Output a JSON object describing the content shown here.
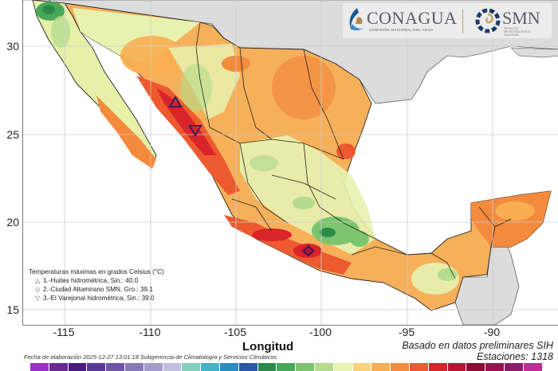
{
  "header": {
    "logo_conagua": "CONAGUA",
    "logo_conagua_sub": "COMISIÓN NACIONAL DEL AGUA",
    "logo_smn": "SMN",
    "logo_smn_sub": "SERVICIO METEOROLÓGICO NACIONAL"
  },
  "axes": {
    "xlabel": "Longitud",
    "xticks": [
      "-115",
      "-110",
      "-105",
      "-100",
      "-95",
      "-90"
    ],
    "yticks": [
      "30",
      "25",
      "20",
      "15"
    ]
  },
  "legend": {
    "title": "Temperaturas máximas en grados Celsius (°C)",
    "items": [
      {
        "symbol": "△",
        "text": "1.-Huites hidrométrica, Sin.: 40.0"
      },
      {
        "symbol": "◇",
        "text": "2.-Ciudad Altamirano SMN, Gro.: 39.1"
      },
      {
        "symbol": "▽",
        "text": "3.-El Varejonal hidrométrica, Sin.: 39.0"
      }
    ]
  },
  "footer": {
    "fecha": "Fecha de elaboración 2025-12-27 13:01:18 Subgerencia de Climatología y Servicios Climáticos",
    "basado": "Basado en datos preliminares SIH",
    "estaciones": "Estaciones:  1318"
  },
  "colorbar": [
    "#9b30c8",
    "#6a2a92",
    "#4a1a80",
    "#5a3796",
    "#6e55aa",
    "#8a78ba",
    "#a49ccc",
    "#c0bfe0",
    "#86d0c0",
    "#40b4c8",
    "#2a8cc0",
    "#2a58a8",
    "#2a8a4a",
    "#48a85a",
    "#7cc46e",
    "#b4dc8c",
    "#e8f2b0",
    "#fad27a",
    "#f8ae50",
    "#f48a3c",
    "#ee5a30",
    "#d8242a",
    "#b81432",
    "#8c0c34",
    "#a01050",
    "#8c1c6a",
    "#c02c98"
  ],
  "chart_data": {
    "type": "heatmap",
    "title": "Temperaturas máximas en grados Celsius (°C)",
    "xlabel": "Longitud",
    "ylabel": "",
    "xlim": [
      -117.5,
      -86.5
    ],
    "ylim": [
      14.2,
      32.7
    ],
    "xticks": [
      -115,
      -110,
      -105,
      -100,
      -95,
      -90
    ],
    "yticks": [
      15,
      20,
      25,
      30
    ],
    "grid": true,
    "stations": [
      {
        "rank": 1,
        "name": "Huites hidrométrica, Sin.",
        "tmax": 40.0,
        "marker": "triangle-up",
        "lon": -108.4,
        "lat": 26.9
      },
      {
        "rank": 2,
        "name": "Ciudad Altamirano SMN, Gro.",
        "tmax": 39.1,
        "marker": "diamond",
        "lon": -100.7,
        "lat": 18.4
      },
      {
        "rank": 3,
        "name": "El Varejonal hidrométrica, Sin.",
        "tmax": 39.0,
        "marker": "triangle-down",
        "lon": -107.4,
        "lat": 25.1
      }
    ],
    "station_count": 1318,
    "source": "Basado en datos preliminares SIH"
  }
}
